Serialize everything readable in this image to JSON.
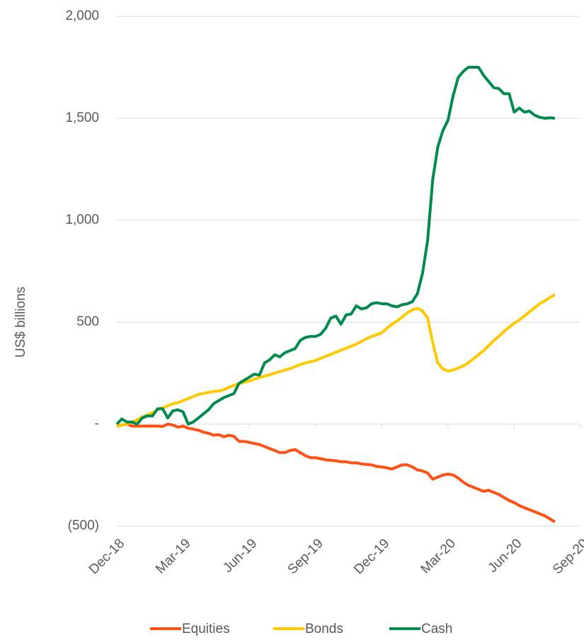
{
  "chart_data": {
    "type": "line",
    "y_label": "US$ billions",
    "categories": [
      "Dec-18",
      null,
      null,
      null,
      null,
      null,
      null,
      null,
      null,
      null,
      null,
      null,
      null,
      "Mar-19",
      null,
      null,
      null,
      null,
      null,
      null,
      null,
      null,
      null,
      null,
      null,
      null,
      "Jun-19",
      null,
      null,
      null,
      null,
      null,
      null,
      null,
      null,
      null,
      null,
      null,
      null,
      "Sep-19",
      null,
      null,
      null,
      null,
      null,
      null,
      null,
      null,
      null,
      null,
      null,
      null,
      "Dec-19",
      null,
      null,
      null,
      null,
      null,
      null,
      null,
      null,
      null,
      null,
      null,
      null,
      "Mar-20",
      null,
      null,
      null,
      null,
      null,
      null,
      null,
      null,
      null,
      null,
      null,
      null,
      "Jun-20",
      null,
      null,
      null,
      null,
      null,
      null,
      null,
      null,
      null,
      null,
      null,
      null,
      "Sep-20"
    ],
    "series": [
      {
        "name": "Equities",
        "color": "#ff4f12",
        "values": [
          -10,
          -5,
          0,
          -10,
          -10,
          -10,
          -10,
          -10,
          -10,
          -12,
          0,
          -5,
          -15,
          -10,
          -20,
          -25,
          -30,
          -40,
          -45,
          -55,
          -52,
          -62,
          -55,
          -60,
          -85,
          -85,
          -90,
          -95,
          -100,
          -110,
          -120,
          -130,
          -140,
          -140,
          -130,
          -125,
          -140,
          -155,
          -165,
          -165,
          -170,
          -175,
          -178,
          -180,
          -185,
          -185,
          -190,
          -190,
          -195,
          -198,
          -200,
          -208,
          -210,
          -215,
          -220,
          -210,
          -200,
          -200,
          -210,
          -225,
          -230,
          -240,
          -270,
          -260,
          -250,
          -245,
          -250,
          -265,
          -285,
          -300,
          -310,
          -320,
          -330,
          -325,
          -335,
          -345,
          -360,
          -375,
          -385,
          -400,
          -410,
          -420,
          -430,
          -440,
          -450,
          -465,
          -480,
          null,
          null,
          null,
          null,
          null
        ]
      },
      {
        "name": "Bonds",
        "color": "#ffc800",
        "values": [
          -10,
          -5,
          0,
          10,
          20,
          35,
          45,
          55,
          70,
          80,
          90,
          100,
          105,
          115,
          125,
          135,
          145,
          150,
          155,
          160,
          162,
          168,
          180,
          190,
          198,
          205,
          212,
          220,
          228,
          235,
          242,
          250,
          257,
          265,
          272,
          282,
          292,
          300,
          306,
          312,
          322,
          332,
          342,
          352,
          362,
          372,
          382,
          392,
          405,
          418,
          430,
          438,
          448,
          470,
          490,
          505,
          525,
          545,
          560,
          568,
          555,
          520,
          400,
          300,
          270,
          260,
          265,
          275,
          285,
          300,
          320,
          340,
          360,
          385,
          410,
          430,
          455,
          475,
          495,
          510,
          530,
          550,
          570,
          590,
          605,
          620,
          635,
          null,
          null,
          null,
          null,
          null
        ]
      },
      {
        "name": "Cash",
        "color": "#008a4e",
        "values": [
          0,
          25,
          10,
          10,
          0,
          30,
          40,
          40,
          75,
          75,
          30,
          65,
          70,
          60,
          0,
          10,
          30,
          50,
          70,
          100,
          115,
          130,
          140,
          150,
          200,
          215,
          230,
          245,
          240,
          300,
          315,
          340,
          330,
          350,
          360,
          370,
          410,
          425,
          430,
          430,
          440,
          470,
          520,
          530,
          490,
          535,
          540,
          580,
          565,
          570,
          590,
          595,
          590,
          590,
          580,
          575,
          585,
          590,
          600,
          640,
          740,
          900,
          1200,
          1360,
          1440,
          1490,
          1610,
          1700,
          1730,
          1750,
          1750,
          1750,
          1710,
          1680,
          1650,
          1645,
          1620,
          1620,
          1530,
          1550,
          1530,
          1535,
          1515,
          1505,
          1500,
          1502,
          1500,
          null,
          null,
          null,
          null,
          null
        ]
      }
    ],
    "ylim": [
      -500,
      2000
    ],
    "yticks": [
      {
        "value": -500,
        "label": "(500)"
      },
      {
        "value": 0,
        "label": "-"
      },
      500,
      {
        "value": 1000,
        "label": "1,000"
      },
      {
        "value": 1500,
        "label": "1,500"
      },
      {
        "value": 2000,
        "label": "2,000"
      }
    ],
    "grid": true,
    "legend": "bottom"
  }
}
